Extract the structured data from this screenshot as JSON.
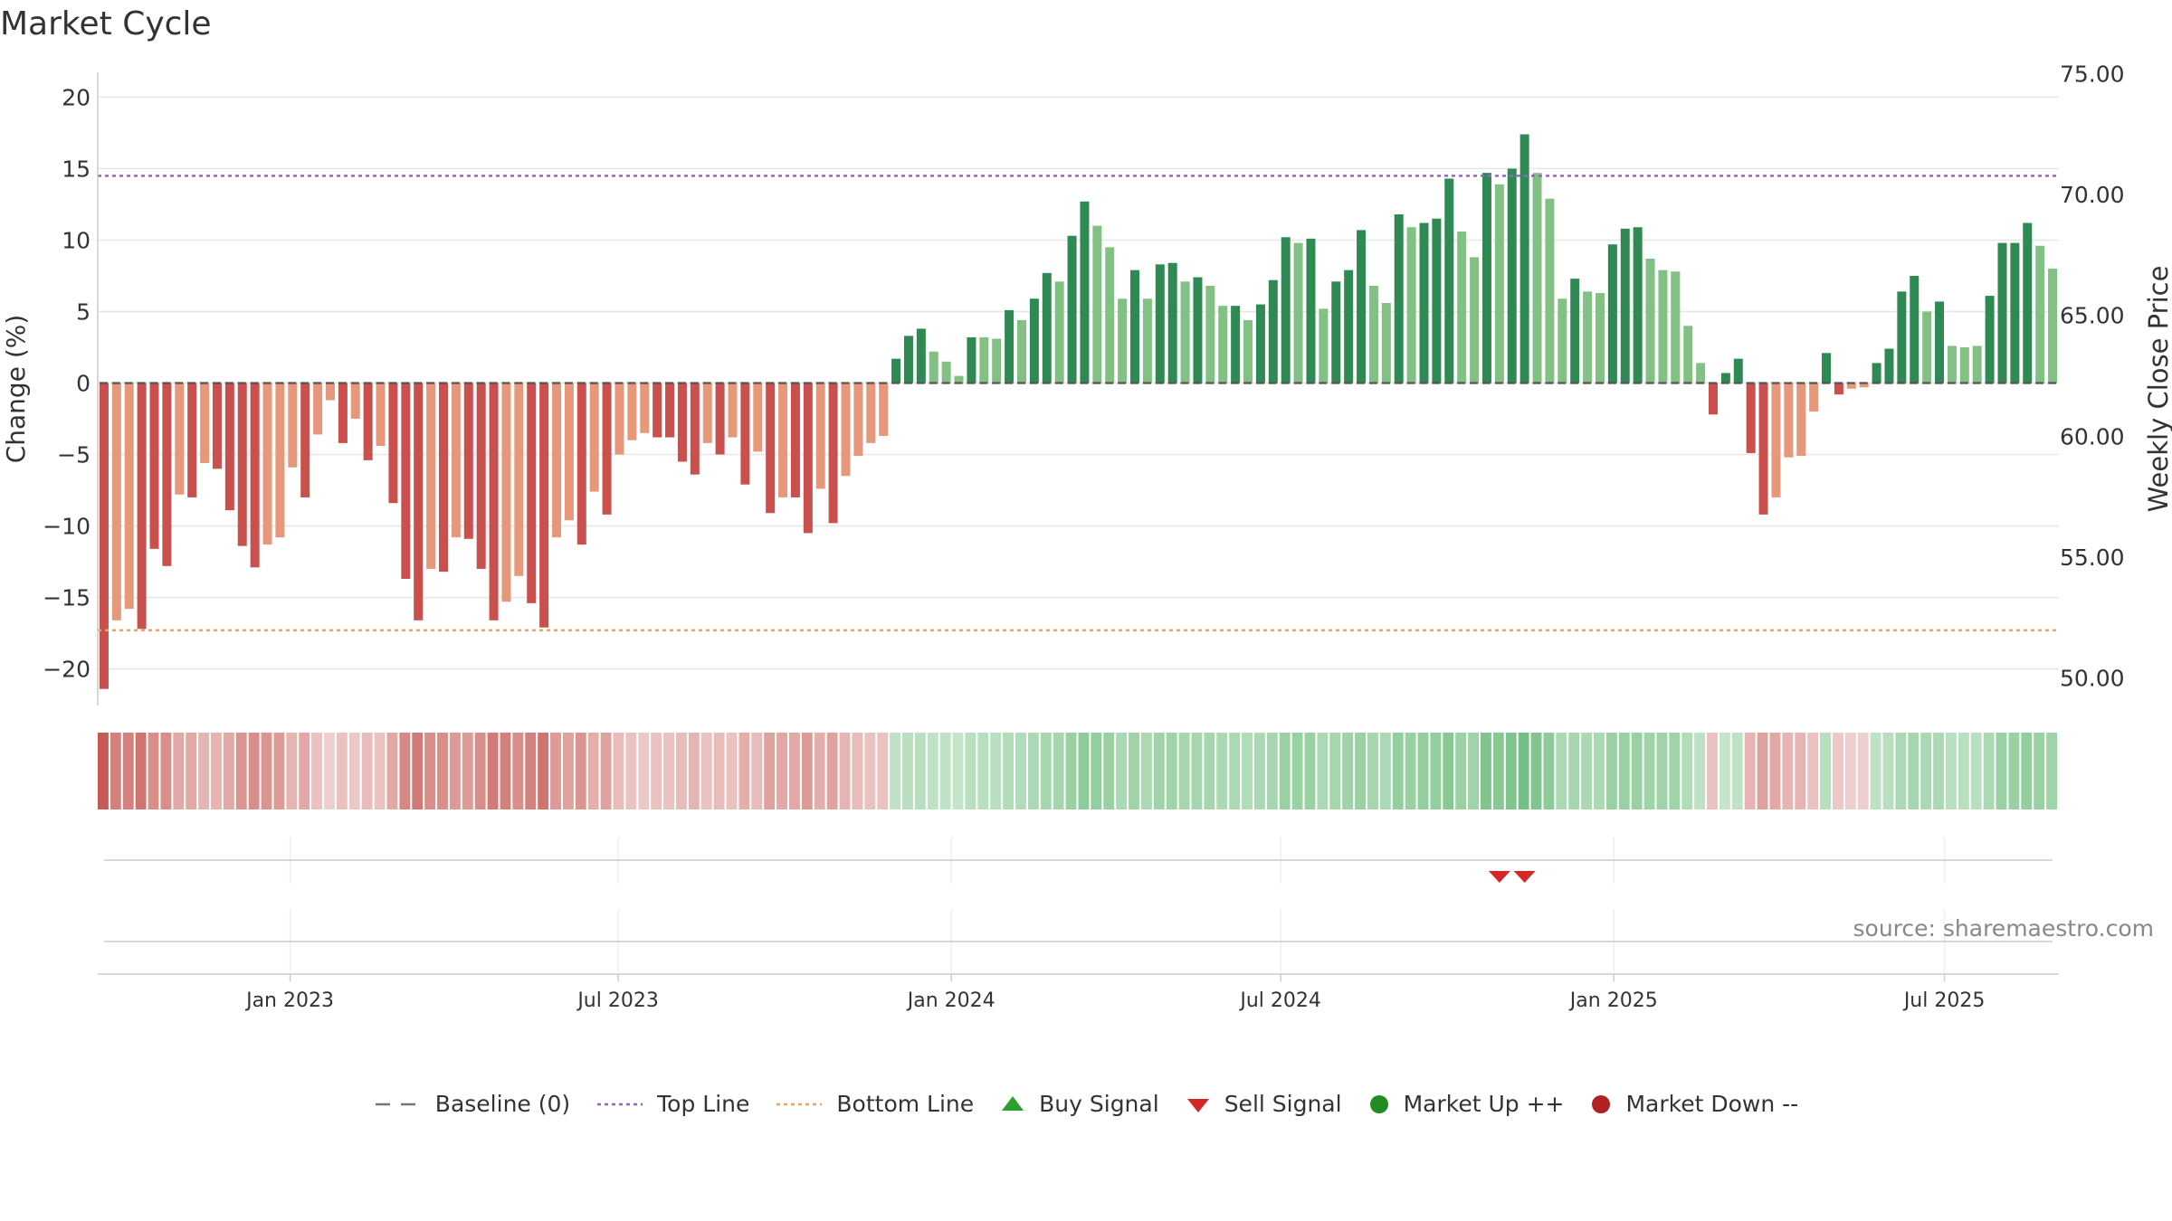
{
  "title": "Market Cycle",
  "source": "source: sharemaestro.com",
  "colors": {
    "red_dark": "#c9504d",
    "red_light": "#e8987a",
    "green_dark": "#2e8a52",
    "green_light": "#82c183",
    "sell": "#d62728",
    "buy": "#2ca02c",
    "top_line": "#9467bd",
    "bottom_line": "#e8a368"
  },
  "legend": [
    {
      "name": "baseline",
      "label": "Baseline (0)"
    },
    {
      "name": "top-line",
      "label": "Top Line"
    },
    {
      "name": "bottom-line",
      "label": "Bottom Line"
    },
    {
      "name": "buy-signal",
      "label": "Buy Signal"
    },
    {
      "name": "sell-signal",
      "label": "Sell Signal"
    },
    {
      "name": "market-up",
      "label": "Market Up ++"
    },
    {
      "name": "market-down",
      "label": "Market Down --"
    }
  ],
  "chart_data": {
    "type": "bar",
    "title": "Market Cycle",
    "ylabel": "Change (%)",
    "y2label": "Weekly Close Price",
    "ylim": [
      -23,
      23
    ],
    "y2lim": [
      48.6,
      75.8
    ],
    "yticks": [
      "20",
      "15",
      "10",
      "5",
      "0",
      "−5",
      "−10",
      "−15",
      "−20"
    ],
    "ytick_values": [
      20,
      15,
      10,
      5,
      0,
      -5,
      -10,
      -15,
      -20
    ],
    "y2ticks": [
      "75.00",
      "70.00",
      "65.00",
      "60.00",
      "55.00",
      "50.00"
    ],
    "y2tick_values": [
      75,
      70,
      65,
      60,
      55,
      50
    ],
    "top_line": 14.5,
    "bottom_line": -17.3,
    "xticks": [
      "Jan 2023",
      "Jul 2023",
      "Jan 2024",
      "Jul 2024",
      "Jan 2025",
      "Jul 2025"
    ],
    "xtick_index": [
      14.8,
      40.9,
      67.4,
      93.6,
      120.1,
      146.4
    ],
    "values": [
      -21.4,
      -16.6,
      -15.8,
      -17.2,
      -11.6,
      -12.8,
      -7.8,
      -8.0,
      -5.6,
      -6.0,
      -8.9,
      -11.4,
      -12.9,
      -11.3,
      -10.8,
      -5.9,
      -8.0,
      -3.6,
      -1.2,
      -4.2,
      -2.5,
      -5.4,
      -4.4,
      -8.4,
      -13.7,
      -16.6,
      -13.0,
      -13.2,
      -10.8,
      -10.9,
      -13.0,
      -16.6,
      -15.3,
      -13.5,
      -15.4,
      -17.1,
      -10.8,
      -9.6,
      -11.3,
      -7.6,
      -9.2,
      -5.0,
      -4.0,
      -3.5,
      -3.8,
      -3.8,
      -5.5,
      -6.4,
      -4.2,
      -5.0,
      -3.8,
      -7.1,
      -4.8,
      -9.1,
      -8.0,
      -8.0,
      -10.5,
      -7.4,
      -9.8,
      -6.5,
      -5.1,
      -4.2,
      -3.7,
      1.7,
      3.3,
      3.8,
      2.2,
      1.5,
      0.5,
      3.2,
      3.2,
      3.1,
      5.1,
      4.4,
      5.9,
      7.7,
      7.1,
      10.3,
      12.7,
      11.0,
      9.5,
      5.9,
      7.9,
      5.9,
      8.3,
      8.4,
      7.1,
      7.4,
      6.8,
      5.4,
      5.4,
      4.4,
      5.5,
      7.2,
      10.2,
      9.8,
      10.1,
      5.2,
      7.1,
      7.9,
      10.7,
      6.8,
      5.6,
      11.8,
      10.9,
      11.2,
      11.5,
      14.3,
      10.6,
      8.8,
      14.7,
      13.9,
      15.0,
      17.4,
      14.7,
      12.9,
      5.9,
      7.3,
      6.4,
      6.3,
      9.7,
      10.8,
      10.9,
      8.7,
      7.9,
      7.8,
      4.0,
      1.4,
      -2.2,
      0.7,
      1.7,
      -4.9,
      -9.2,
      -8.0,
      -5.2,
      -5.1,
      -2.0,
      2.1,
      -0.8,
      -0.4,
      -0.3,
      1.4,
      2.4,
      6.4,
      7.5,
      5.0,
      5.7,
      2.6,
      2.5,
      2.6,
      6.1,
      9.8,
      9.8,
      11.2,
      9.6,
      8.0
    ],
    "bar_shade": [
      "d",
      "l",
      "l",
      "d",
      "d",
      "d",
      "l",
      "d",
      "l",
      "d",
      "d",
      "d",
      "d",
      "l",
      "l",
      "l",
      "d",
      "l",
      "l",
      "d",
      "l",
      "d",
      "l",
      "d",
      "d",
      "d",
      "l",
      "d",
      "l",
      "d",
      "d",
      "d",
      "l",
      "l",
      "d",
      "d",
      "l",
      "l",
      "d",
      "l",
      "d",
      "l",
      "l",
      "l",
      "d",
      "d",
      "d",
      "d",
      "l",
      "d",
      "l",
      "d",
      "l",
      "d",
      "l",
      "d",
      "d",
      "l",
      "d",
      "l",
      "l",
      "l",
      "l",
      "d",
      "d",
      "d",
      "l",
      "l",
      "l",
      "d",
      "l",
      "l",
      "d",
      "l",
      "d",
      "d",
      "l",
      "d",
      "d",
      "l",
      "l",
      "l",
      "d",
      "l",
      "d",
      "d",
      "l",
      "d",
      "l",
      "l",
      "d",
      "l",
      "d",
      "d",
      "d",
      "l",
      "d",
      "l",
      "d",
      "d",
      "d",
      "l",
      "l",
      "d",
      "l",
      "d",
      "d",
      "d",
      "l",
      "l",
      "d",
      "l",
      "d",
      "d",
      "l",
      "l",
      "l",
      "d",
      "l",
      "l",
      "d",
      "d",
      "d",
      "l",
      "l",
      "l",
      "l",
      "l",
      "d",
      "d",
      "d",
      "d",
      "d",
      "l",
      "l",
      "l",
      "l",
      "d",
      "d",
      "l",
      "l",
      "d",
      "d",
      "d",
      "d",
      "l",
      "d",
      "l",
      "l",
      "l",
      "d",
      "d",
      "d",
      "d",
      "l",
      "l"
    ],
    "regime_index": [
      -1.0,
      -0.7,
      -0.7,
      -0.8,
      -0.6,
      -0.6,
      -0.4,
      -0.4,
      -0.3,
      -0.3,
      -0.4,
      -0.55,
      -0.6,
      -0.55,
      -0.5,
      -0.3,
      -0.4,
      -0.2,
      -0.1,
      -0.2,
      -0.15,
      -0.25,
      -0.2,
      -0.4,
      -0.65,
      -0.75,
      -0.6,
      -0.6,
      -0.5,
      -0.5,
      -0.6,
      -0.75,
      -0.7,
      -0.6,
      -0.7,
      -0.8,
      -0.5,
      -0.45,
      -0.55,
      -0.35,
      -0.45,
      -0.25,
      -0.2,
      -0.15,
      -0.2,
      -0.2,
      -0.25,
      -0.3,
      -0.2,
      -0.25,
      -0.2,
      -0.35,
      -0.25,
      -0.45,
      -0.4,
      -0.4,
      -0.5,
      -0.35,
      -0.45,
      -0.3,
      -0.25,
      -0.2,
      -0.2,
      0.2,
      0.25,
      0.25,
      0.2,
      0.2,
      0.15,
      0.25,
      0.25,
      0.25,
      0.3,
      0.3,
      0.35,
      0.4,
      0.4,
      0.5,
      0.6,
      0.55,
      0.5,
      0.35,
      0.45,
      0.35,
      0.45,
      0.45,
      0.4,
      0.4,
      0.4,
      0.35,
      0.35,
      0.3,
      0.35,
      0.4,
      0.5,
      0.5,
      0.5,
      0.35,
      0.4,
      0.45,
      0.5,
      0.4,
      0.35,
      0.55,
      0.5,
      0.55,
      0.55,
      0.65,
      0.5,
      0.45,
      0.7,
      0.65,
      0.7,
      0.8,
      0.7,
      0.6,
      0.35,
      0.4,
      0.35,
      0.35,
      0.5,
      0.5,
      0.5,
      0.45,
      0.45,
      0.45,
      0.3,
      0.2,
      -0.2,
      0.15,
      0.2,
      -0.3,
      -0.45,
      -0.4,
      -0.3,
      -0.3,
      -0.2,
      0.25,
      -0.15,
      -0.1,
      -0.1,
      0.2,
      0.25,
      0.35,
      0.4,
      0.35,
      0.35,
      0.25,
      0.25,
      0.25,
      0.35,
      0.5,
      0.5,
      0.55,
      0.5,
      0.45
    ],
    "sell_signals": [
      111,
      113
    ],
    "buy_signals": [],
    "market_up": [],
    "market_down": []
  }
}
